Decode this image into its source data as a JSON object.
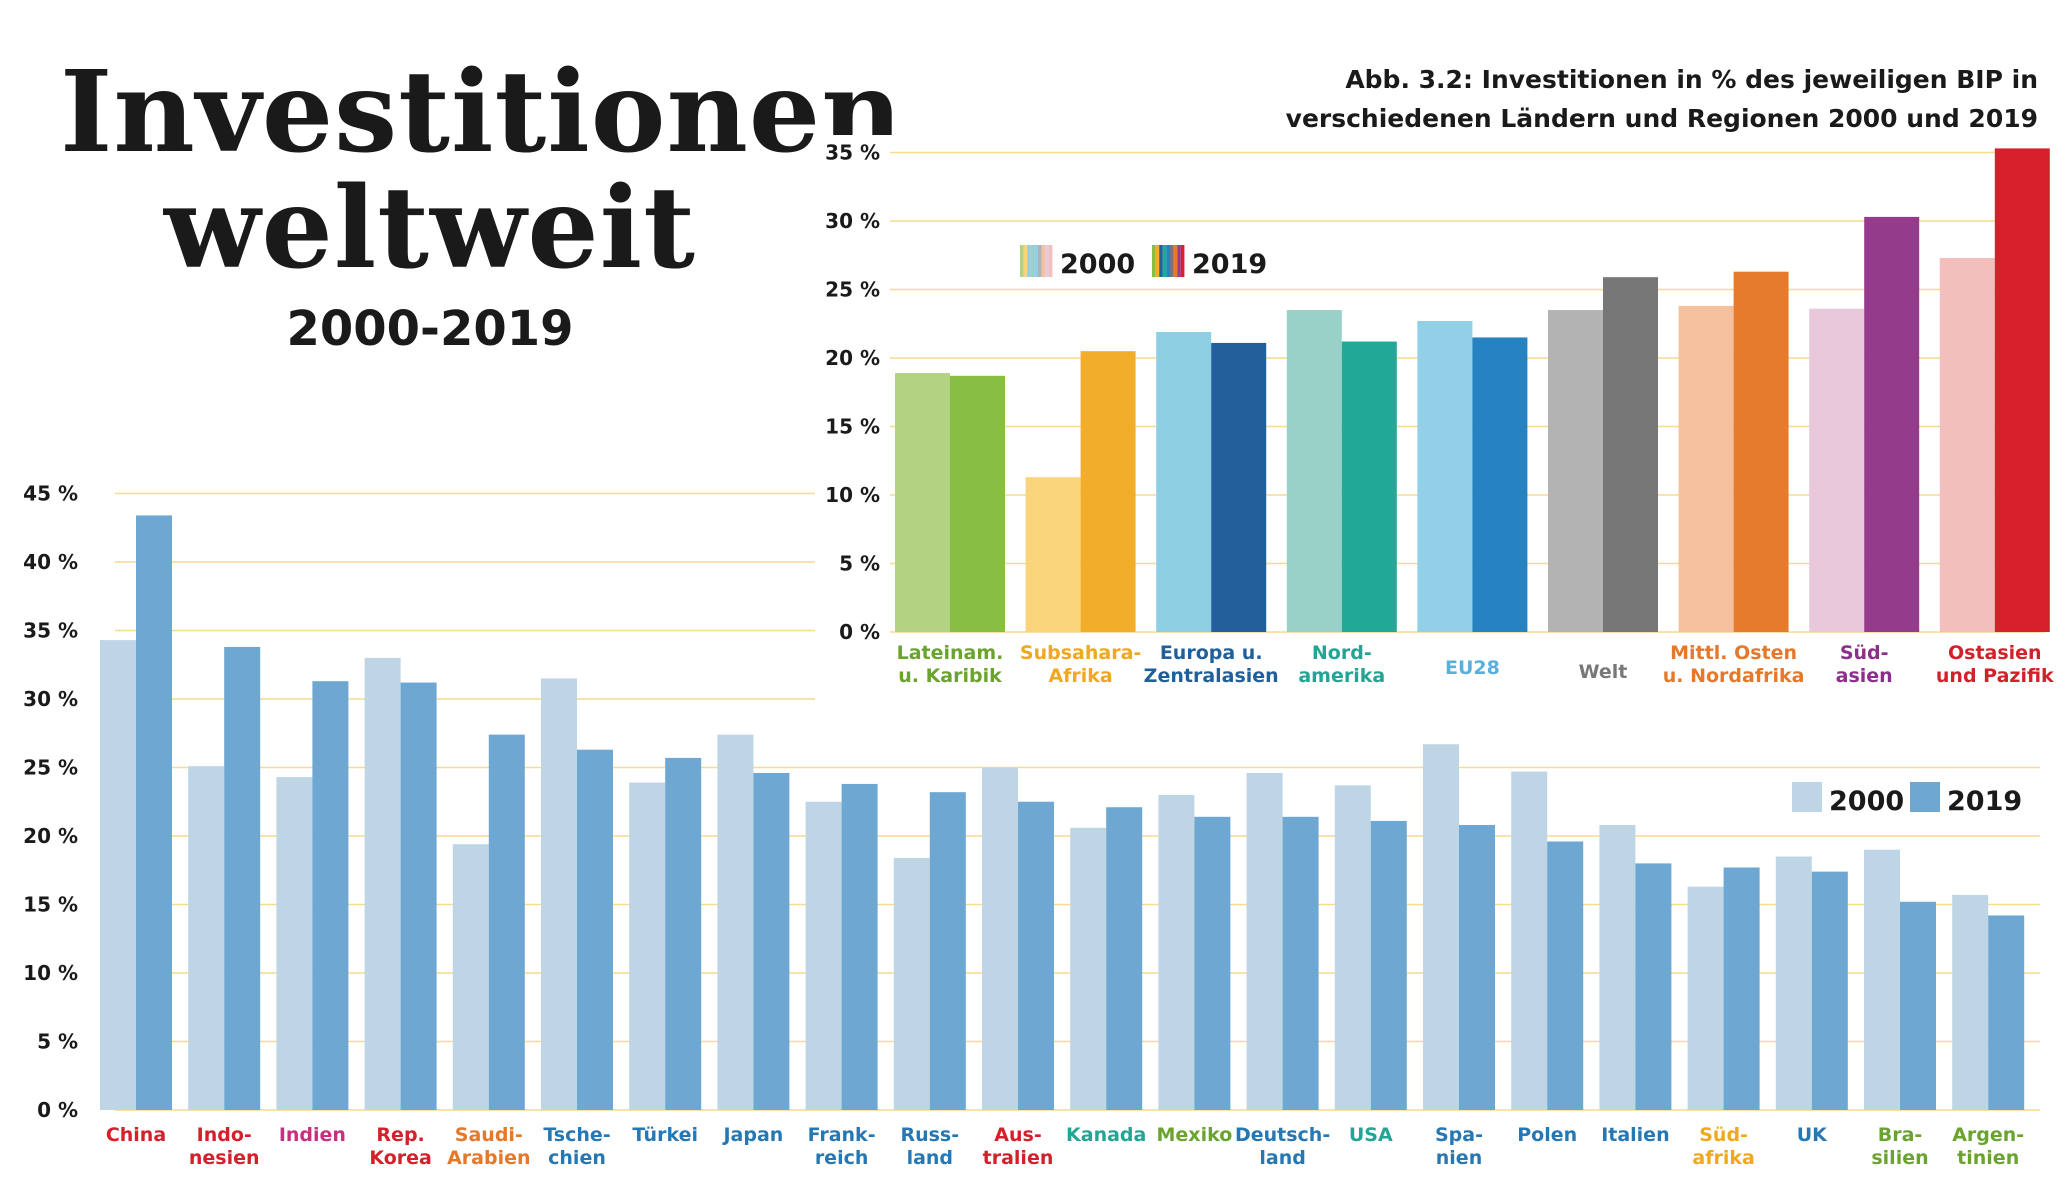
{
  "title": "Investitionen weltweit",
  "subtitle": "2000-2019",
  "caption": {
    "line1": "Abb. 3.2:  Investitionen in % des jeweiligen BIP in",
    "line2": "verschiedenen Ländern und Regionen 2000 und 2019"
  },
  "chart_data": [
    {
      "type": "bar",
      "ylim": [
        0,
        35
      ],
      "yticks": [
        "0 %",
        "5 %",
        "10 %",
        "15 %",
        "20 %",
        "25 %",
        "30 %",
        "35 %"
      ],
      "grid": true,
      "legend": {
        "placement": "top-left",
        "entries": [
          "2000",
          "2019"
        ]
      },
      "categories": [
        {
          "label": "Lateinam.|u. Karibik",
          "label_color": "#6aa42f",
          "color2000": "#b3d383",
          "color2019": "#86bf41"
        },
        {
          "label": "Subsahara-|Afrika",
          "label_color": "#f0a81e",
          "color2000": "#fad47a",
          "color2019": "#f2ae2b"
        },
        {
          "label": "Europa u.|Zentralasien",
          "label_color": "#215f9a",
          "color2000": "#8fcfe3",
          "color2019": "#225f9b"
        },
        {
          "label": "Nord-|amerika",
          "label_color": "#22a594",
          "color2000": "#98d1c8",
          "color2019": "#21a896"
        },
        {
          "label": "EU28",
          "label_color": "#5ab0dc",
          "color2000": "#91d0e6",
          "color2019": "#2782c1"
        },
        {
          "label": "Welt",
          "label_color": "#787878",
          "color2000": "#b3b3b3",
          "color2019": "#777777"
        },
        {
          "label": "Mittl. Osten|u. Nordafrika",
          "label_color": "#e5782b",
          "color2000": "#f5c09d",
          "color2019": "#e67b2c"
        },
        {
          "label": "Süd-|asien",
          "label_color": "#8b2f8a",
          "color2000": "#e8c8da",
          "color2019": "#943c8b"
        },
        {
          "label": "Ostasien|und Pazifik",
          "label_color": "#d4202a",
          "color2000": "#f2bfbd",
          "color2019": "#d8202d"
        }
      ],
      "series": [
        {
          "name": "2000",
          "values": [
            18.9,
            11.3,
            21.9,
            23.5,
            22.7,
            23.5,
            23.8,
            23.6,
            27.3
          ]
        },
        {
          "name": "2019",
          "values": [
            18.7,
            20.5,
            21.1,
            21.2,
            21.5,
            25.9,
            26.3,
            30.3,
            35.3
          ]
        }
      ]
    },
    {
      "type": "bar",
      "ylim": [
        0,
        45
      ],
      "yticks": [
        "0 %",
        "5 %",
        "10 %",
        "15 %",
        "20 %",
        "25 %",
        "30 %",
        "35 %",
        "40 %",
        "45 %"
      ],
      "grid": true,
      "legend": {
        "placement": "right",
        "entries": [
          "2000",
          "2019"
        ]
      },
      "colors": {
        "2000": "#bed5e5",
        "2019": "#6ea7d2"
      },
      "categories": [
        {
          "label": "China",
          "label_color": "#d4202a"
        },
        {
          "label": "Indo-|nesien",
          "label_color": "#d4202a"
        },
        {
          "label": "Indien",
          "label_color": "#c8307f"
        },
        {
          "label": "Rep.|Korea",
          "label_color": "#d4202a"
        },
        {
          "label": "Saudi-|Arabien",
          "label_color": "#e5782b"
        },
        {
          "label": "Tsche-|chien",
          "label_color": "#2578b4"
        },
        {
          "label": "Türkei",
          "label_color": "#2578b4"
        },
        {
          "label": "Japan",
          "label_color": "#2578b4"
        },
        {
          "label": "Frank-|reich",
          "label_color": "#2578b4"
        },
        {
          "label": "Russ-|land",
          "label_color": "#2578b4"
        },
        {
          "label": "Aus-|tralien",
          "label_color": "#d4202a"
        },
        {
          "label": "Kanada",
          "label_color": "#22a594"
        },
        {
          "label": "Mexiko",
          "label_color": "#6aa42f"
        },
        {
          "label": "Deutsch-|land",
          "label_color": "#2578b4"
        },
        {
          "label": "USA",
          "label_color": "#22a594"
        },
        {
          "label": "Spa-|nien",
          "label_color": "#2578b4"
        },
        {
          "label": "Polen",
          "label_color": "#2578b4"
        },
        {
          "label": "Italien",
          "label_color": "#2578b4"
        },
        {
          "label": "Süd-|afrika",
          "label_color": "#f0a81e"
        },
        {
          "label": "UK",
          "label_color": "#2578b4"
        },
        {
          "label": "Bra-|silien",
          "label_color": "#6aa42f"
        },
        {
          "label": "Argen-|tinien",
          "label_color": "#6aa42f"
        }
      ],
      "series": [
        {
          "name": "2000",
          "values": [
            34.3,
            25.1,
            24.3,
            33.0,
            19.4,
            31.5,
            23.9,
            27.4,
            22.5,
            18.4,
            25.0,
            20.6,
            23.0,
            24.6,
            23.7,
            26.7,
            24.7,
            20.8,
            16.3,
            18.5,
            19.0,
            15.7
          ]
        },
        {
          "name": "2019",
          "values": [
            43.4,
            33.8,
            31.3,
            31.2,
            27.4,
            26.3,
            25.7,
            24.6,
            23.8,
            23.2,
            22.5,
            22.1,
            21.4,
            21.4,
            21.1,
            20.8,
            19.6,
            18.0,
            17.7,
            17.4,
            15.2,
            14.2
          ]
        }
      ]
    }
  ]
}
